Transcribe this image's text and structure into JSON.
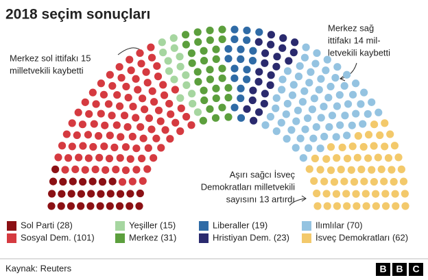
{
  "chart_data": {
    "type": "parliament",
    "title": "2018 seçim sonuçları",
    "series": [
      {
        "name": "Sol Parti (28)",
        "value": 28,
        "color": "#8b1014"
      },
      {
        "name": "Sosyal Dem. (101)",
        "value": 101,
        "color": "#d53a40"
      },
      {
        "name": "Yeşiller (15)",
        "value": 15,
        "color": "#a6d6a0"
      },
      {
        "name": "Merkez (31)",
        "value": 31,
        "color": "#5c9f3d"
      },
      {
        "name": "Liberaller (19)",
        "value": 19,
        "color": "#2f6ba6"
      },
      {
        "name": "Hristiyan Dem. (23)",
        "value": 23,
        "color": "#2a2a6e"
      },
      {
        "name": "Ilımlılar (70)",
        "value": 70,
        "color": "#94c3e1"
      },
      {
        "name": "İsveç Demokratları (62)",
        "value": 62,
        "color": "#f3c96b"
      }
    ],
    "annotations": [
      [
        "Merkez sol ittifakı 15",
        "milletvekili kaybetti"
      ],
      [
        "Merkez sağ",
        "ittifakı 14 mil-",
        "letvekili kaybetti"
      ],
      [
        "Aşırı sağcı İsveç",
        "Demokratları milletvekili",
        "sayısını 13 artırdı"
      ]
    ],
    "source": "Kaynak: Reuters",
    "logo": [
      "B",
      "B",
      "C"
    ]
  }
}
